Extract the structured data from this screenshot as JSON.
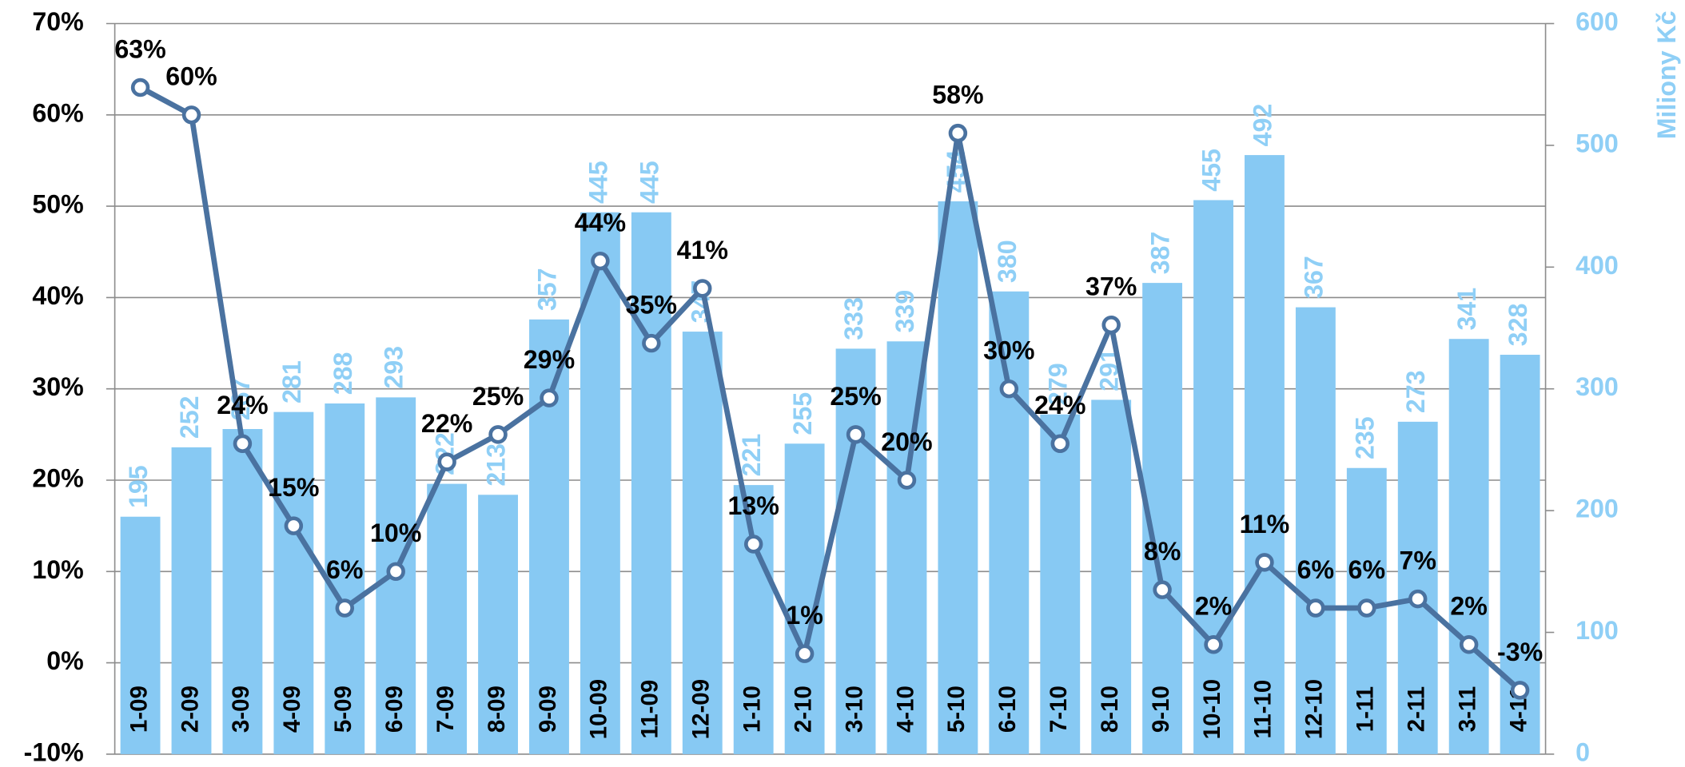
{
  "chart_data": {
    "type": "bar_line",
    "y2_label": "Miliony Kč",
    "categories": [
      "1-09",
      "2-09",
      "3-09",
      "4-09",
      "5-09",
      "6-09",
      "7-09",
      "8-09",
      "9-09",
      "10-09",
      "11-09",
      "12-09",
      "1-10",
      "2-10",
      "3-10",
      "4-10",
      "5-10",
      "6-10",
      "7-10",
      "8-10",
      "9-10",
      "10-10",
      "11-10",
      "12-10",
      "1-11",
      "2-11",
      "3-11",
      "4-11"
    ],
    "series": [
      {
        "type": "bar",
        "axis": "y2",
        "color": "#87c9f3",
        "values": [
          195,
          252,
          267,
          281,
          288,
          293,
          222,
          213,
          357,
          445,
          445,
          347,
          221,
          255,
          333,
          339,
          454,
          380,
          279,
          291,
          387,
          455,
          492,
          367,
          235,
          273,
          341,
          328
        ]
      },
      {
        "type": "line",
        "axis": "y",
        "color": "#4a72a0",
        "values": [
          63,
          60,
          24,
          15,
          6,
          10,
          22,
          25,
          29,
          44,
          35,
          41,
          13,
          1,
          25,
          20,
          58,
          30,
          24,
          37,
          8,
          2,
          11,
          6,
          6,
          7,
          2,
          -3
        ],
        "value_labels": [
          "63%",
          "60%",
          "24%",
          "15%",
          "6%",
          "10%",
          "22%",
          "25%",
          "29%",
          "44%",
          "35%",
          "41%",
          "13%",
          "1%",
          "25%",
          "20%",
          "58%",
          "30%",
          "24%",
          "37%",
          "8%",
          "2%",
          "11%",
          "6%",
          "6%",
          "7%",
          "2%",
          "-3%"
        ]
      }
    ],
    "ylim": [
      -10,
      70
    ],
    "yticks": [
      {
        "value": -10,
        "label": "-10%"
      },
      {
        "value": 0,
        "label": "0%"
      },
      {
        "value": 10,
        "label": "10%"
      },
      {
        "value": 20,
        "label": "20%"
      },
      {
        "value": 30,
        "label": "30%"
      },
      {
        "value": 40,
        "label": "40%"
      },
      {
        "value": 50,
        "label": "50%"
      },
      {
        "value": 60,
        "label": "60%"
      },
      {
        "value": 70,
        "label": "70%"
      }
    ],
    "y2lim": [
      0,
      600
    ],
    "y2ticks": [
      0,
      100,
      200,
      300,
      400,
      500,
      600
    ],
    "grid": true
  }
}
